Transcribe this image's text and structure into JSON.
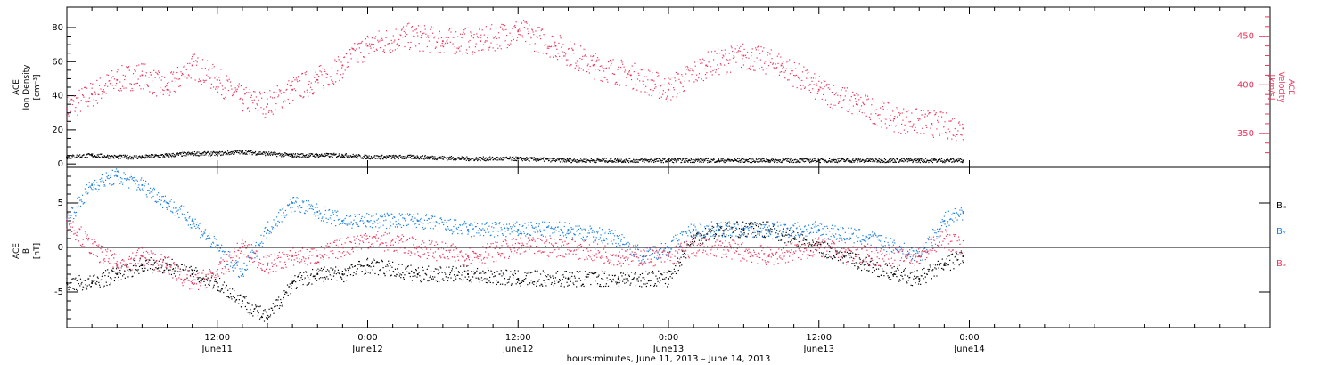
{
  "colors": {
    "density": "#000000",
    "velocity": "#e8355c",
    "bx": "#000000",
    "by": "#1a7fe0",
    "bz": "#e8355c",
    "axis": "#000000"
  },
  "xaxis": {
    "label": "hours:minutes, June 11, 2013 – June 14, 2013",
    "range_hours": [
      0,
      96
    ],
    "ticks": [
      {
        "hours": 12,
        "time": "12:00",
        "date": "June11"
      },
      {
        "hours": 24,
        "time": "0:00",
        "date": "June12"
      },
      {
        "hours": 36,
        "time": "12:00",
        "date": "June12"
      },
      {
        "hours": 48,
        "time": "0:00",
        "date": "June13"
      },
      {
        "hours": 60,
        "time": "12:00",
        "date": "June13"
      },
      {
        "hours": 72,
        "time": "0:00",
        "date": "June14"
      }
    ],
    "data_end_hours": 71.5
  },
  "chart_data": [
    {
      "type": "scatter",
      "panel": "top",
      "ylabel_left": [
        "ACE",
        "Ion Density",
        "[cm⁻³]"
      ],
      "ylabel_right": [
        "ACE",
        "Velocity",
        "[km/s]"
      ],
      "ylim_left": [
        -2,
        92
      ],
      "yticks_left": [
        "0",
        "20",
        "40",
        "60",
        "80"
      ],
      "ylim_right": [
        315,
        480
      ],
      "yticks_right": [
        "350",
        "400",
        "450"
      ],
      "series": [
        {
          "key": "density",
          "axis": "left",
          "x_hours": [
            0,
            2,
            4,
            6,
            8,
            10,
            12,
            14,
            16,
            18,
            20,
            22,
            24,
            28,
            32,
            36,
            40,
            44,
            48,
            52,
            56,
            60,
            64,
            68,
            71.5
          ],
          "values": [
            4,
            5,
            4,
            4,
            5,
            6,
            6,
            7,
            6,
            5,
            5,
            5,
            4,
            4,
            3,
            3,
            2,
            2,
            2,
            2,
            2,
            2,
            2,
            2,
            2
          ]
        },
        {
          "key": "velocity",
          "axis": "right",
          "x_hours": [
            0,
            2,
            4,
            6,
            8,
            10,
            12,
            14,
            16,
            18,
            20,
            22,
            24,
            27,
            30,
            33,
            36,
            39,
            42,
            45,
            48,
            51,
            54,
            57,
            60,
            63,
            66,
            69,
            71.5
          ],
          "values": [
            375,
            390,
            405,
            410,
            395,
            420,
            405,
            385,
            380,
            395,
            405,
            420,
            440,
            450,
            445,
            445,
            455,
            440,
            420,
            410,
            395,
            420,
            430,
            420,
            395,
            380,
            365,
            360,
            355
          ]
        }
      ]
    },
    {
      "type": "scatter",
      "panel": "bottom",
      "ylabel_left": [
        "ACE",
        "B",
        "[nT]"
      ],
      "ylim": [
        -9,
        9
      ],
      "yticks": [
        "-5",
        "0",
        "5"
      ],
      "legend": [
        "Bₓ",
        "Bᵧ",
        "Bₔ"
      ],
      "legend_placement": "right",
      "series": [
        {
          "key": "bx",
          "x_hours": [
            0,
            2,
            4,
            6,
            8,
            10,
            12,
            14,
            16,
            18,
            20,
            22,
            24,
            28,
            32,
            36,
            40,
            44,
            48,
            50,
            52,
            54,
            56,
            58,
            60,
            62,
            64,
            66,
            68,
            70,
            71.5
          ],
          "values": [
            -4,
            -4,
            -3,
            -2,
            -2,
            -3,
            -4,
            -6,
            -8,
            -4,
            -3,
            -3,
            -2,
            -3,
            -3,
            -3.5,
            -3.5,
            -3.5,
            -3.5,
            1,
            2,
            2,
            2,
            1,
            0,
            -1,
            -2,
            -3,
            -3.5,
            -2,
            -1
          ]
        },
        {
          "key": "by",
          "x_hours": [
            0,
            2,
            4,
            6,
            8,
            10,
            12,
            14,
            16,
            18,
            20,
            22,
            24,
            28,
            32,
            36,
            40,
            44,
            46,
            48,
            50,
            52,
            56,
            60,
            64,
            68,
            70,
            71.5
          ],
          "values": [
            3,
            7,
            8,
            7,
            5,
            3,
            0,
            -3,
            2,
            5,
            4,
            3,
            3,
            3,
            2,
            2,
            2,
            1,
            -1,
            0,
            2,
            2,
            2,
            2,
            1,
            -1,
            3,
            4
          ]
        },
        {
          "key": "bz",
          "x_hours": [
            0,
            2,
            4,
            6,
            8,
            10,
            12,
            14,
            16,
            18,
            20,
            22,
            24,
            28,
            32,
            36,
            40,
            44,
            48,
            50,
            52,
            56,
            60,
            64,
            68,
            70,
            71.5
          ],
          "values": [
            3,
            0,
            -2,
            -1,
            -2,
            -4,
            -3,
            0,
            -2,
            -1,
            -1,
            0,
            1,
            0,
            -1,
            0,
            0,
            -1,
            -1,
            0,
            0,
            -1,
            0,
            -1,
            -1,
            1,
            0
          ]
        }
      ]
    }
  ]
}
